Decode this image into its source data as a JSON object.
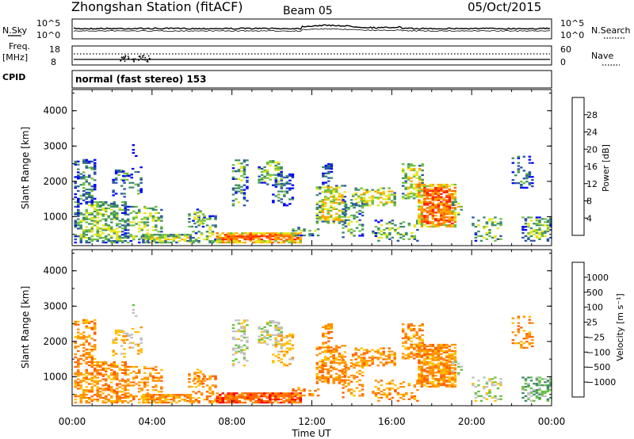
{
  "header": {
    "station": "Zhongshan Station (fitACF)",
    "beam": "Beam 05",
    "date": "05/Oct/2015"
  },
  "noise_panel": {
    "left_label": "N.Sky",
    "right_label": "N.Search",
    "left_ticks": [
      "10^5",
      "10^0"
    ],
    "right_ticks": [
      "10^5",
      "10^0"
    ]
  },
  "freq_panel": {
    "left_label_line1": "Freq.",
    "left_label_line2": "[MHz]",
    "right_label": "Nave",
    "left_ticks": [
      "18",
      "8"
    ],
    "right_ticks": [
      "60",
      "0"
    ]
  },
  "cpid": {
    "label": "CPID",
    "value": "normal (fast stereo) 153"
  },
  "chart_data": [
    {
      "type": "heatmap",
      "quantity": "Power",
      "ylabel": "Slant Range [km]",
      "xlabel": "",
      "ylim": [
        180,
        4600
      ],
      "yticks": [
        "1000",
        "2000",
        "3000",
        "4000"
      ],
      "colorbar": {
        "label": "Power [dB]",
        "ticks": [
          "4",
          "8",
          "12",
          "16",
          "20",
          "24",
          "28"
        ],
        "colors": [
          "#0000ff",
          "#2a52a8",
          "#3d8c68",
          "#6fbf40",
          "#e6e61e",
          "#ffa500",
          "#ff6a00",
          "#ff2000"
        ]
      }
    },
    {
      "type": "heatmap",
      "quantity": "Velocity",
      "ylabel": "Slant Range [km]",
      "xlabel": "Time UT",
      "ylim": [
        180,
        4600
      ],
      "yticks": [
        "1000",
        "2000",
        "3000",
        "4000"
      ],
      "xticks": [
        "00:00",
        "04:00",
        "08:00",
        "12:00",
        "16:00",
        "20:00",
        "00:00"
      ],
      "colorbar": {
        "label": "Velocity [m s⁻¹]",
        "ticks": [
          "1000",
          "500",
          "100",
          "25",
          "−25",
          "−100",
          "−500",
          "−1000"
        ],
        "colors": [
          "#2040c0",
          "#3a70b0",
          "#3d8c68",
          "#66c040",
          "#c0c0c0",
          "#ffc000",
          "#ff9000",
          "#ff6000",
          "#ff0000"
        ]
      }
    }
  ]
}
